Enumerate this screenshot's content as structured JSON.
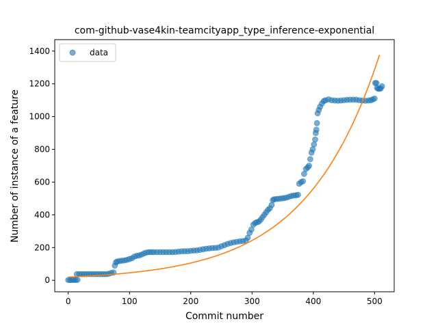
{
  "chart_data": {
    "type": "scatter",
    "title": "com-github-vase4kin-teamcityapp_type_inference-exponential",
    "xlabel": "Commit number",
    "ylabel": "Number of instance of a feature",
    "xlim": [
      -22,
      532
    ],
    "ylim": [
      -70,
      1470
    ],
    "xticks": [
      0,
      100,
      200,
      300,
      400,
      500
    ],
    "yticks": [
      0,
      200,
      400,
      600,
      800,
      1000,
      1200,
      1400
    ],
    "legend": {
      "position": "top-left",
      "entries": [
        "data"
      ]
    },
    "grid": false,
    "colors": {
      "data": "#1f77b4",
      "fit": "#ff7f0e"
    },
    "series": [
      {
        "name": "data",
        "kind": "scatter",
        "points": [
          [
            0,
            2
          ],
          [
            3,
            2
          ],
          [
            6,
            2
          ],
          [
            9,
            3
          ],
          [
            12,
            2
          ],
          [
            15,
            3
          ],
          [
            14,
            38
          ],
          [
            18,
            38
          ],
          [
            22,
            38
          ],
          [
            26,
            38
          ],
          [
            30,
            38
          ],
          [
            34,
            38
          ],
          [
            38,
            38
          ],
          [
            42,
            38
          ],
          [
            46,
            38
          ],
          [
            50,
            38
          ],
          [
            54,
            38
          ],
          [
            58,
            38
          ],
          [
            62,
            38
          ],
          [
            66,
            40
          ],
          [
            70,
            45
          ],
          [
            74,
            48
          ],
          [
            76,
            90
          ],
          [
            78,
            110
          ],
          [
            80,
            115
          ],
          [
            84,
            118
          ],
          [
            88,
            120
          ],
          [
            92,
            122
          ],
          [
            96,
            125
          ],
          [
            100,
            130
          ],
          [
            104,
            135
          ],
          [
            108,
            145
          ],
          [
            112,
            150
          ],
          [
            116,
            152
          ],
          [
            120,
            158
          ],
          [
            124,
            165
          ],
          [
            128,
            170
          ],
          [
            132,
            172
          ],
          [
            136,
            172
          ],
          [
            140,
            172
          ],
          [
            145,
            172
          ],
          [
            150,
            172
          ],
          [
            155,
            172
          ],
          [
            160,
            172
          ],
          [
            165,
            172
          ],
          [
            170,
            172
          ],
          [
            175,
            173
          ],
          [
            180,
            175
          ],
          [
            185,
            177
          ],
          [
            190,
            178
          ],
          [
            195,
            178
          ],
          [
            200,
            180
          ],
          [
            205,
            182
          ],
          [
            210,
            183
          ],
          [
            215,
            186
          ],
          [
            220,
            190
          ],
          [
            225,
            193
          ],
          [
            230,
            195
          ],
          [
            235,
            197
          ],
          [
            240,
            198
          ],
          [
            245,
            200
          ],
          [
            250,
            208
          ],
          [
            255,
            215
          ],
          [
            260,
            222
          ],
          [
            265,
            228
          ],
          [
            270,
            232
          ],
          [
            275,
            235
          ],
          [
            280,
            238
          ],
          [
            285,
            240
          ],
          [
            290,
            243
          ],
          [
            293,
            260
          ],
          [
            296,
            290
          ],
          [
            299,
            310
          ],
          [
            302,
            340
          ],
          [
            305,
            350
          ],
          [
            308,
            355
          ],
          [
            311,
            358
          ],
          [
            314,
            370
          ],
          [
            317,
            385
          ],
          [
            320,
            400
          ],
          [
            323,
            415
          ],
          [
            326,
            430
          ],
          [
            329,
            440
          ],
          [
            332,
            460
          ],
          [
            334,
            490
          ],
          [
            336,
            495
          ],
          [
            340,
            497
          ],
          [
            344,
            498
          ],
          [
            348,
            500
          ],
          [
            352,
            502
          ],
          [
            356,
            505
          ],
          [
            360,
            510
          ],
          [
            364,
            515
          ],
          [
            368,
            518
          ],
          [
            372,
            520
          ],
          [
            375,
            522
          ],
          [
            377,
            590
          ],
          [
            380,
            600
          ],
          [
            383,
            605
          ],
          [
            385,
            650
          ],
          [
            388,
            680
          ],
          [
            391,
            690
          ],
          [
            393,
            700
          ],
          [
            395,
            740
          ],
          [
            397,
            780
          ],
          [
            399,
            800
          ],
          [
            401,
            830
          ],
          [
            403,
            860
          ],
          [
            404,
            900
          ],
          [
            405,
            920
          ],
          [
            406,
            960
          ],
          [
            407,
            1020
          ],
          [
            409,
            1040
          ],
          [
            411,
            1060
          ],
          [
            414,
            1080
          ],
          [
            417,
            1095
          ],
          [
            420,
            1100
          ],
          [
            425,
            1105
          ],
          [
            430,
            1100
          ],
          [
            435,
            1098
          ],
          [
            440,
            1097
          ],
          [
            445,
            1098
          ],
          [
            450,
            1100
          ],
          [
            455,
            1102
          ],
          [
            460,
            1103
          ],
          [
            465,
            1103
          ],
          [
            470,
            1103
          ],
          [
            475,
            1100
          ],
          [
            480,
            1098
          ],
          [
            485,
            1097
          ],
          [
            490,
            1098
          ],
          [
            494,
            1100
          ],
          [
            497,
            1105
          ],
          [
            500,
            1110
          ],
          [
            501,
            1205
          ],
          [
            503,
            1205
          ],
          [
            504,
            1175
          ],
          [
            506,
            1170
          ],
          [
            508,
            1170
          ],
          [
            510,
            1172
          ],
          [
            512,
            1185
          ]
        ]
      },
      {
        "name": "",
        "kind": "line",
        "model": "exponential",
        "x_range": [
          0,
          508
        ],
        "a": 20,
        "b": 0.00833
      }
    ]
  }
}
